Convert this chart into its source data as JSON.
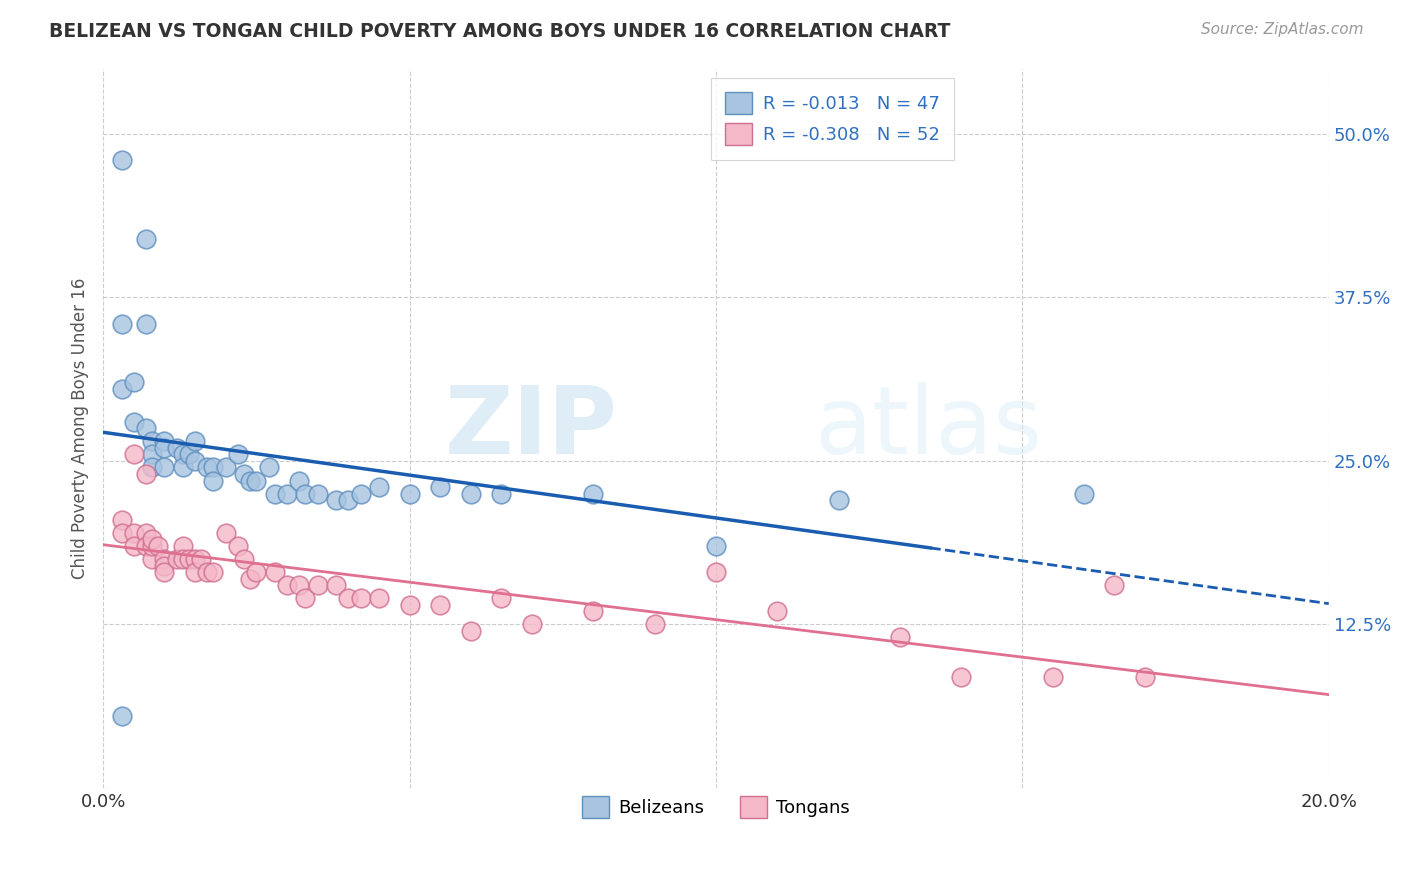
{
  "title": "BELIZEAN VS TONGAN CHILD POVERTY AMONG BOYS UNDER 16 CORRELATION CHART",
  "source": "Source: ZipAtlas.com",
  "ylabel": "Child Poverty Among Boys Under 16",
  "xlim": [
    0.0,
    0.2
  ],
  "ylim": [
    0.0,
    0.55
  ],
  "xticks": [
    0.0,
    0.05,
    0.1,
    0.15,
    0.2
  ],
  "xtick_labels": [
    "0.0%",
    "",
    "",
    "",
    "20.0%"
  ],
  "yticks": [
    0.0,
    0.125,
    0.25,
    0.375,
    0.5
  ],
  "ytick_labels": [
    "",
    "12.5%",
    "25.0%",
    "37.5%",
    "50.0%"
  ],
  "legend_r1": "R = -0.013",
  "legend_n1": "N = 47",
  "legend_r2": "R = -0.308",
  "legend_n2": "N = 52",
  "belizean_color": "#a8c4e0",
  "tongan_color": "#f4b8c8",
  "trendline_belizean_color": "#1a5cb0",
  "trendline_tongan_color": "#e07090",
  "watermark_zip": "ZIP",
  "watermark_atlas": "atlas",
  "trendline_solid_end": 0.135,
  "belizean_x": [
    0.003,
    0.007,
    0.003,
    0.007,
    0.003,
    0.005,
    0.005,
    0.007,
    0.008,
    0.008,
    0.008,
    0.01,
    0.01,
    0.01,
    0.012,
    0.013,
    0.013,
    0.014,
    0.015,
    0.015,
    0.017,
    0.018,
    0.018,
    0.02,
    0.022,
    0.023,
    0.024,
    0.025,
    0.027,
    0.028,
    0.03,
    0.032,
    0.033,
    0.035,
    0.038,
    0.04,
    0.042,
    0.045,
    0.05,
    0.055,
    0.06,
    0.065,
    0.08,
    0.1,
    0.12,
    0.16,
    0.003
  ],
  "belizean_y": [
    0.48,
    0.42,
    0.355,
    0.355,
    0.305,
    0.31,
    0.28,
    0.275,
    0.265,
    0.255,
    0.245,
    0.265,
    0.26,
    0.245,
    0.26,
    0.255,
    0.245,
    0.255,
    0.265,
    0.25,
    0.245,
    0.245,
    0.235,
    0.245,
    0.255,
    0.24,
    0.235,
    0.235,
    0.245,
    0.225,
    0.225,
    0.235,
    0.225,
    0.225,
    0.22,
    0.22,
    0.225,
    0.23,
    0.225,
    0.23,
    0.225,
    0.225,
    0.225,
    0.185,
    0.22,
    0.225,
    0.055
  ],
  "tongan_x": [
    0.003,
    0.003,
    0.005,
    0.005,
    0.007,
    0.007,
    0.008,
    0.008,
    0.008,
    0.009,
    0.01,
    0.01,
    0.01,
    0.012,
    0.013,
    0.013,
    0.014,
    0.015,
    0.015,
    0.016,
    0.017,
    0.018,
    0.02,
    0.022,
    0.023,
    0.024,
    0.025,
    0.028,
    0.03,
    0.032,
    0.033,
    0.035,
    0.038,
    0.04,
    0.042,
    0.045,
    0.05,
    0.055,
    0.06,
    0.065,
    0.07,
    0.08,
    0.09,
    0.1,
    0.11,
    0.13,
    0.14,
    0.155,
    0.165,
    0.17,
    0.005,
    0.007
  ],
  "tongan_y": [
    0.205,
    0.195,
    0.195,
    0.185,
    0.195,
    0.185,
    0.175,
    0.185,
    0.19,
    0.185,
    0.175,
    0.17,
    0.165,
    0.175,
    0.185,
    0.175,
    0.175,
    0.175,
    0.165,
    0.175,
    0.165,
    0.165,
    0.195,
    0.185,
    0.175,
    0.16,
    0.165,
    0.165,
    0.155,
    0.155,
    0.145,
    0.155,
    0.155,
    0.145,
    0.145,
    0.145,
    0.14,
    0.14,
    0.12,
    0.145,
    0.125,
    0.135,
    0.125,
    0.165,
    0.135,
    0.115,
    0.085,
    0.085,
    0.155,
    0.085,
    0.255,
    0.24
  ]
}
